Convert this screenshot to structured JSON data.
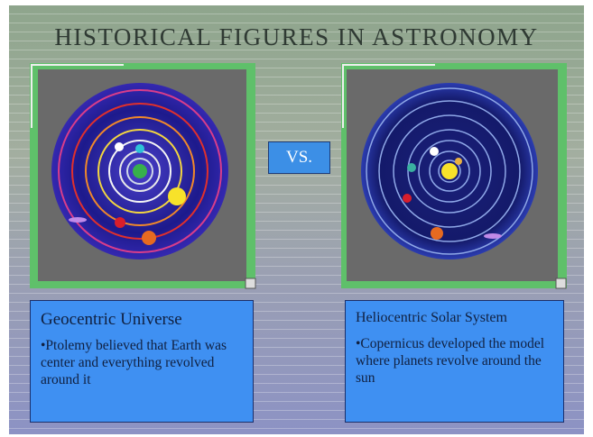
{
  "slide": {
    "title": "HISTORICAL FIGURES IN ASTRONOMY",
    "vs": "VS.",
    "left": {
      "heading": "Geocentric Universe",
      "text": "•Ptolemy believed that Earth was center and everything revolved around it"
    },
    "right": {
      "heading": "Heliocentric Solar System",
      "text": "•Copernicus developed the model where planets revolve around the sun"
    }
  }
}
